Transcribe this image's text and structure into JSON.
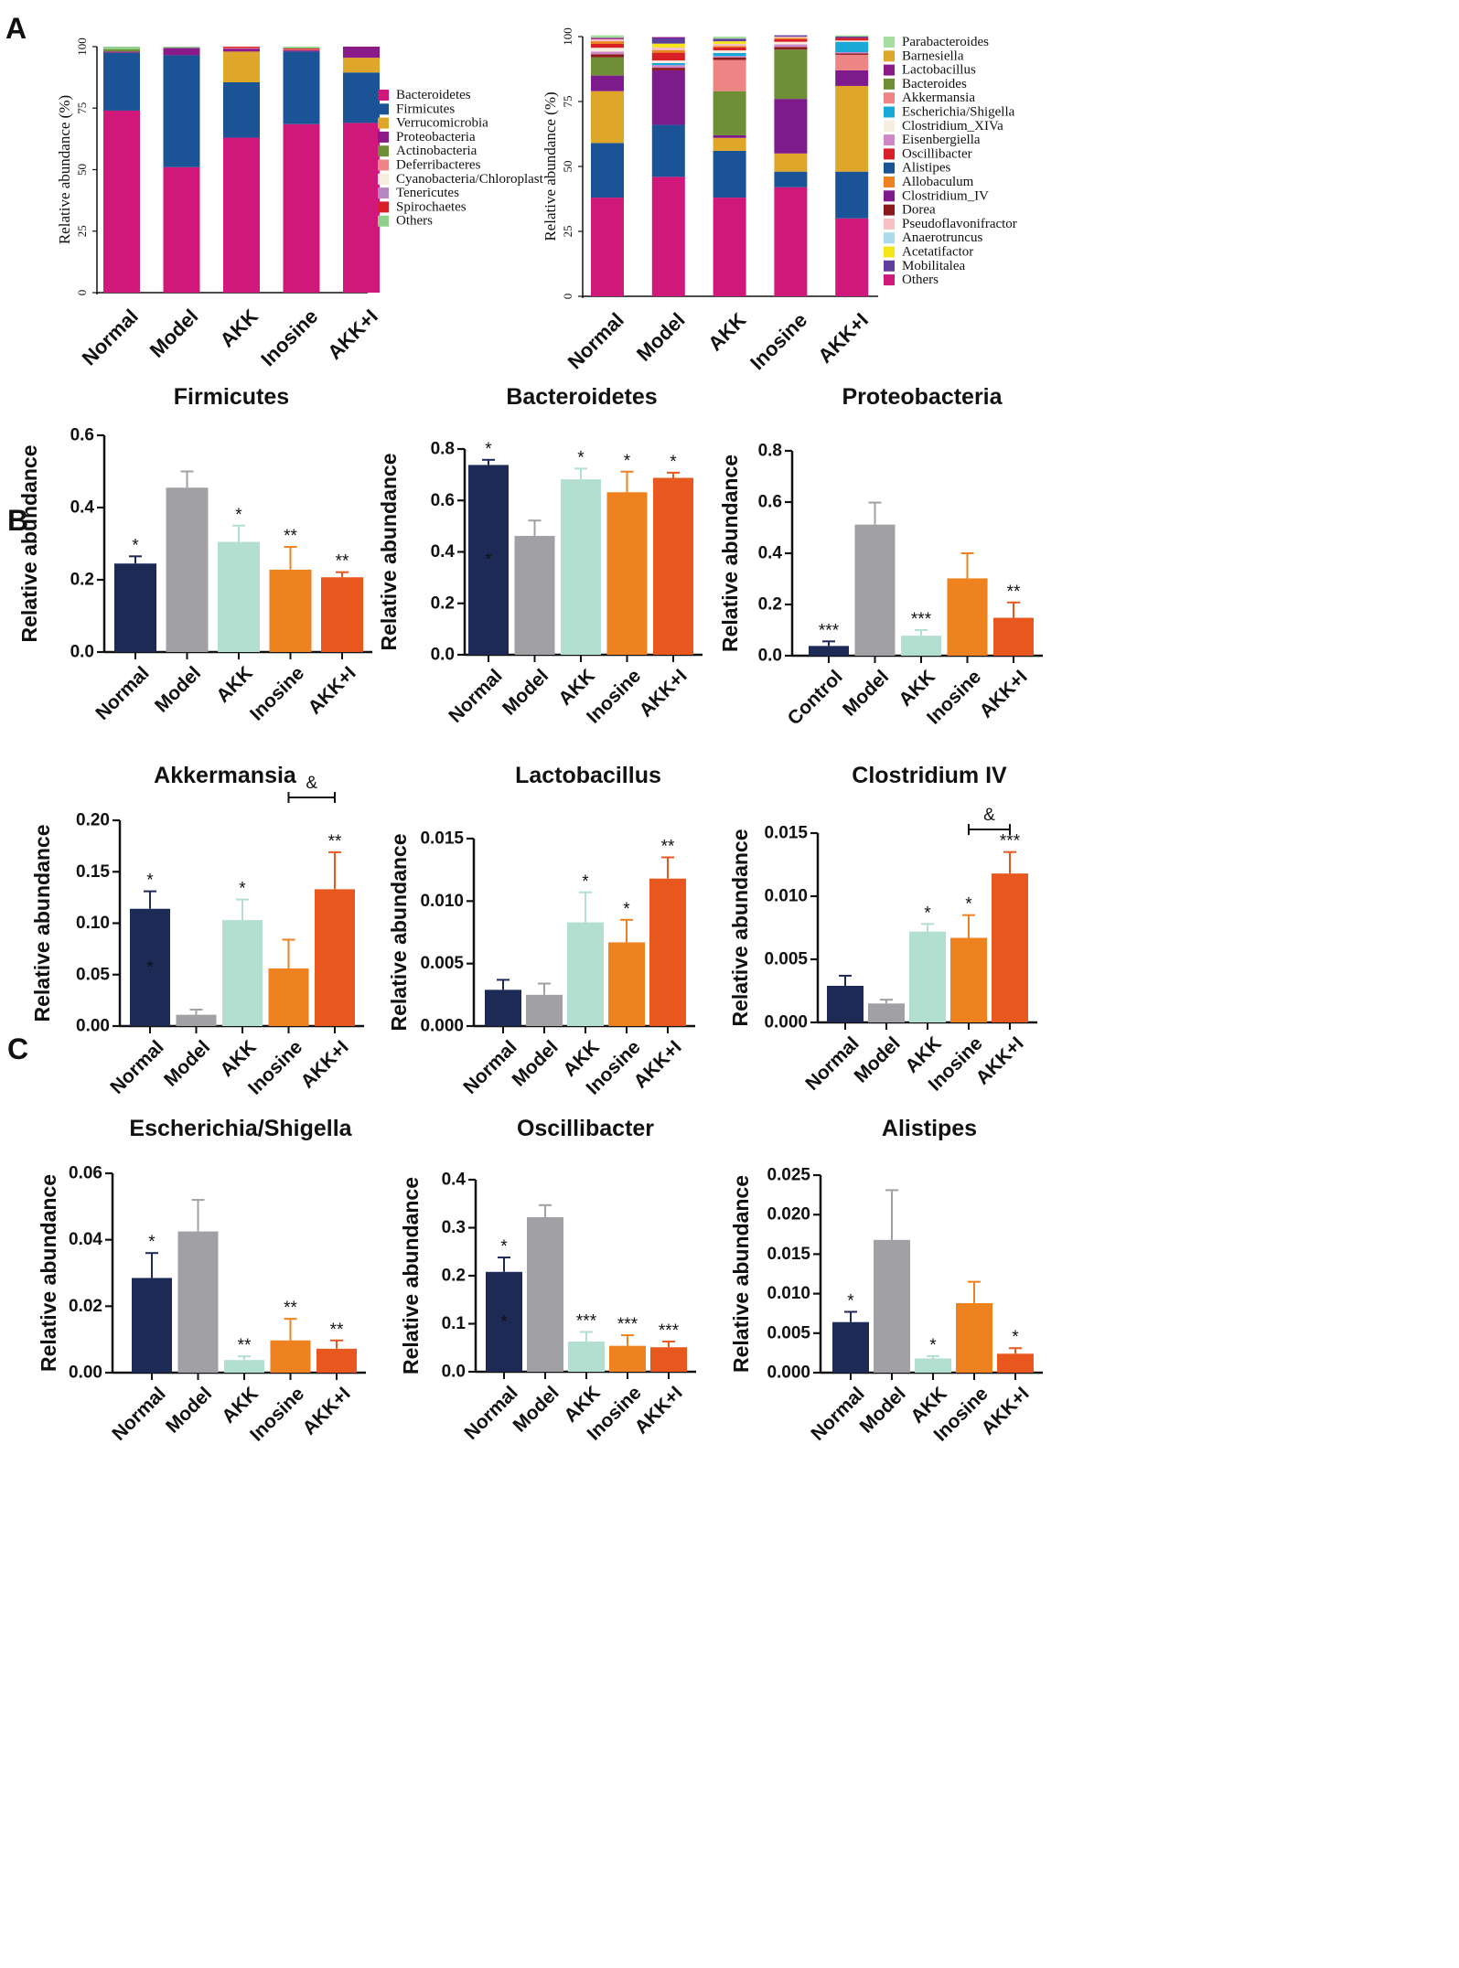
{
  "panel_labels": [
    "A",
    "B",
    "C"
  ],
  "colors": {
    "Normal": "#1c2a55",
    "Model": "#a1a1a5",
    "AKK": "#b2dfd0",
    "Inosine": "#ee821e",
    "AKK+I": "#e8581e"
  },
  "chart_data": [
    {
      "id": "A1",
      "type": "bar",
      "stacked": true,
      "ylabel": "Relative abundance (%)",
      "yticks": [
        "0",
        "25",
        "50",
        "75",
        "100"
      ],
      "ylim": [
        0,
        100
      ],
      "categories": [
        "Normal",
        "Model",
        "AKK",
        "Inosine",
        "AKK+I"
      ],
      "legend_position": "right",
      "series": [
        {
          "name": "Bacteroidetes",
          "color": "#d0177a",
          "values": [
            74,
            51,
            63,
            68.5,
            69
          ]
        },
        {
          "name": "Firmicutes",
          "color": "#1a5496",
          "values": [
            23.5,
            45.5,
            22.5,
            29.5,
            20.5
          ]
        },
        {
          "name": "Verrucomicrobia",
          "color": "#dea72a",
          "values": [
            0,
            0,
            12.5,
            0,
            6
          ]
        },
        {
          "name": "Proteobacteria",
          "color": "#8a1a8a",
          "values": [
            0.5,
            3,
            1.2,
            0.5,
            4.5
          ]
        },
        {
          "name": "Actinobacteria",
          "color": "#6f8f36",
          "values": [
            1,
            0,
            0,
            0,
            0
          ]
        },
        {
          "name": "Deferribacteres",
          "color": "#ee8585",
          "values": [
            0,
            0,
            0.3,
            0.3,
            0
          ]
        },
        {
          "name": "Cyanobacteria/Chloroplast",
          "color": "#f6ece0",
          "values": [
            0,
            0,
            0,
            0,
            0
          ]
        },
        {
          "name": "Tenericutes",
          "color": "#b487c0",
          "values": [
            0,
            0,
            0,
            0,
            0
          ]
        },
        {
          "name": "Spirochaetes",
          "color": "#d81f26",
          "values": [
            0,
            0,
            0.5,
            0.5,
            0
          ]
        },
        {
          "name": "Others",
          "color": "#8fd18a",
          "values": [
            1,
            0.5,
            0,
            0.7,
            0
          ]
        }
      ]
    },
    {
      "id": "A2",
      "type": "bar",
      "stacked": true,
      "ylabel": "Relative abundance (%)",
      "yticks": [
        "0",
        "25",
        "50",
        "75",
        "100"
      ],
      "ylim": [
        0,
        100
      ],
      "categories": [
        "Normal",
        "Model",
        "AKK",
        "Inosine",
        "AKK+I"
      ],
      "legend_position": "right",
      "legend": [
        "Parabacteroides",
        "Barnesiella",
        "Lactobacillus",
        "Bacteroides",
        "Akkermansia",
        "Escherichia/Shigella",
        "Clostridium_XIVa",
        "Eisenbergiella",
        "Oscillibacter",
        "Alistipes",
        "Allobaculum",
        "Clostridium_IV",
        "Dorea",
        "Pseudoflavonifractor",
        "Anaerotruncus",
        "Acetatifactor",
        "Mobilitalea",
        "Others"
      ],
      "series": [
        {
          "name": "Others",
          "color": "#d0177a",
          "values": [
            38,
            46,
            38,
            42,
            30
          ]
        },
        {
          "name": "Alistipes",
          "color": "#1a5496",
          "values": [
            21,
            20,
            18,
            6,
            18
          ]
        },
        {
          "name": "Barnesiella",
          "color": "#dea72a",
          "values": [
            20,
            0,
            5,
            7,
            33
          ]
        },
        {
          "name": "Clostridium_IV",
          "color": "#7d1a8c",
          "values": [
            6,
            21,
            1,
            21,
            6
          ]
        },
        {
          "name": "Bacteroides",
          "color": "#6f8f36",
          "values": [
            7,
            0,
            17,
            19,
            0
          ]
        },
        {
          "name": "Akkermansia",
          "color": "#ee8585",
          "values": [
            0,
            0,
            12,
            0,
            6
          ]
        },
        {
          "name": "Dorea",
          "color": "#8b1a1a",
          "values": [
            1.2,
            1,
            1,
            1,
            0.5
          ]
        },
        {
          "name": "Eisenbergiella",
          "color": "#cf87c8",
          "values": [
            1,
            1,
            0.5,
            1,
            0.5
          ]
        },
        {
          "name": "Escherichia/Shigella",
          "color": "#1aa8d8",
          "values": [
            0,
            0.8,
            1.2,
            0,
            4
          ]
        },
        {
          "name": "Clostridium_XIVa",
          "color": "#f6ece0",
          "values": [
            1.5,
            1,
            1,
            1,
            0.5
          ]
        },
        {
          "name": "Oscillibacter",
          "color": "#d81f26",
          "values": [
            1.5,
            3,
            1.2,
            1,
            1
          ]
        },
        {
          "name": "Allobaculum",
          "color": "#ee821e",
          "values": [
            1,
            1,
            0.5,
            0.5,
            0
          ]
        },
        {
          "name": "Pseudoflavonifractor",
          "color": "#f6c0c5",
          "values": [
            0.8,
            1,
            0.8,
            0.5,
            0
          ]
        },
        {
          "name": "Acetatifactor",
          "color": "#f5e61a",
          "values": [
            0,
            1.5,
            1,
            0,
            0
          ]
        },
        {
          "name": "Mobilitalea",
          "color": "#5e3f9c",
          "values": [
            0,
            2,
            1,
            0.5,
            0.5
          ]
        },
        {
          "name": "Anaerotruncus",
          "color": "#a9dbeb",
          "values": [
            0,
            0,
            0,
            0,
            0
          ]
        },
        {
          "name": "Lactobacillus",
          "color": "#8a1a8a",
          "values": [
            0.5,
            0.5,
            0,
            0,
            0
          ]
        },
        {
          "name": "Parabacteroides",
          "color": "#a6dda0",
          "values": [
            1,
            0,
            0.8,
            0,
            0.5
          ]
        }
      ]
    },
    {
      "id": "B1",
      "type": "bar",
      "title": "Firmicutes",
      "ylabel": "Relative abundance",
      "categories": [
        "Normal",
        "Model",
        "AKK",
        "Inosine",
        "AKK+I"
      ],
      "values": [
        0.245,
        0.455,
        0.305,
        0.228,
        0.207
      ],
      "errors": [
        0.02,
        0.045,
        0.045,
        0.063,
        0.014
      ],
      "annotations": [
        "*",
        "",
        "*",
        "**",
        "**"
      ],
      "ylim": [
        0,
        0.6
      ],
      "yticks": [
        "0.0",
        "0.2",
        "0.4",
        "0.6"
      ]
    },
    {
      "id": "B2",
      "type": "bar",
      "title": "Bacteroidetes",
      "ylabel": "Relative abundance",
      "categories": [
        "Normal",
        "Model",
        "AKK",
        "Inosine",
        "AKK+I"
      ],
      "values": [
        0.738,
        0.462,
        0.682,
        0.632,
        0.688
      ],
      "errors": [
        0.02,
        0.06,
        0.042,
        0.08,
        0.02
      ],
      "annotations": [
        "*",
        "",
        "*",
        "*",
        "*"
      ],
      "inner_marks": [
        "*",
        "",
        "",
        "",
        ""
      ],
      "ylim": [
        0,
        0.8
      ],
      "yticks": [
        "0.0",
        "0.2",
        "0.4",
        "0.6",
        "0.8"
      ]
    },
    {
      "id": "B3",
      "type": "bar",
      "title": "Proteobacteria",
      "ylabel": "Relative abundance",
      "categories": [
        "Control",
        "Model",
        "AKK",
        "Inosine",
        "AKK+I"
      ],
      "values": [
        0.038,
        0.512,
        0.078,
        0.302,
        0.148
      ],
      "errors": [
        0.018,
        0.086,
        0.022,
        0.098,
        0.06
      ],
      "annotations": [
        "***",
        "",
        "***",
        "",
        "**"
      ],
      "ylim": [
        0,
        0.8
      ],
      "yticks": [
        "0.0",
        "0.2",
        "0.4",
        "0.6",
        "0.8"
      ]
    },
    {
      "id": "C1",
      "type": "bar",
      "title": "Akkermansia",
      "ylabel": "Relative abundance",
      "categories": [
        "Normal",
        "Model",
        "AKK",
        "Inosine",
        "AKK+I"
      ],
      "values": [
        0.114,
        0.011,
        0.103,
        0.056,
        0.133
      ],
      "errors": [
        0.017,
        0.005,
        0.02,
        0.028,
        0.036
      ],
      "annotations": [
        "*",
        "",
        "*",
        "",
        "**"
      ],
      "inner_marks": [
        "*",
        "",
        "",
        "",
        ""
      ],
      "bracket": {
        "from": 3,
        "to": 4,
        "label": "&"
      },
      "ylim": [
        0,
        0.2
      ],
      "yticks": [
        "0.00",
        "0.05",
        "0.10",
        "0.15",
        "0.20"
      ]
    },
    {
      "id": "C2",
      "type": "bar",
      "title": "Lactobacillus",
      "ylabel": "Relative abundance",
      "categories": [
        "Normal",
        "Model",
        "AKK",
        "Inosine",
        "AKK+I"
      ],
      "values": [
        0.0029,
        0.0025,
        0.0083,
        0.0067,
        0.0118
      ],
      "errors": [
        0.0008,
        0.0009,
        0.0024,
        0.0018,
        0.0017
      ],
      "annotations": [
        "",
        "",
        "*",
        "*",
        "**"
      ],
      "ylim": [
        0,
        0.015
      ],
      "yticks": [
        "0.000",
        "0.005",
        "0.010",
        "0.015"
      ]
    },
    {
      "id": "C3",
      "type": "bar",
      "title": "Clostridium IV",
      "ylabel": "Relative abundance",
      "categories": [
        "Normal",
        "Model",
        "AKK",
        "Inosine",
        "AKK+I"
      ],
      "values": [
        0.0029,
        0.0015,
        0.0072,
        0.0067,
        0.0118
      ],
      "errors": [
        0.0008,
        0.0003,
        0.0006,
        0.0018,
        0.0017
      ],
      "annotations": [
        "",
        "",
        "*",
        "*",
        "***"
      ],
      "bracket": {
        "from": 3,
        "to": 4,
        "label": "&"
      },
      "ylim": [
        0,
        0.015
      ],
      "yticks": [
        "0.000",
        "0.005",
        "0.010",
        "0.015"
      ]
    },
    {
      "id": "C4",
      "type": "bar",
      "title": "Escherichia/Shigella",
      "ylabel": "Relative abundance",
      "categories": [
        "Normal",
        "Model",
        "AKK",
        "Inosine",
        "AKK+I"
      ],
      "values": [
        0.0285,
        0.0425,
        0.0038,
        0.0097,
        0.0072
      ],
      "errors": [
        0.0075,
        0.0095,
        0.0011,
        0.0065,
        0.0025
      ],
      "annotations": [
        "*",
        "",
        "**",
        "**",
        "**"
      ],
      "ylim": [
        0,
        0.06
      ],
      "yticks": [
        "0.00",
        "0.02",
        "0.04",
        "0.06"
      ]
    },
    {
      "id": "C5",
      "type": "bar",
      "title": "Oscillibacter",
      "ylabel": "Relative abundance",
      "categories": [
        "Normal",
        "Model",
        "AKK",
        "Inosine",
        "AKK+I"
      ],
      "values": [
        0.208,
        0.322,
        0.063,
        0.054,
        0.051
      ],
      "errors": [
        0.03,
        0.025,
        0.02,
        0.022,
        0.012
      ],
      "annotations": [
        "*",
        "",
        "***",
        "***",
        "***"
      ],
      "inner_marks": [
        "*",
        "",
        "",
        "",
        ""
      ],
      "ylim": [
        0,
        0.4
      ],
      "yticks": [
        "0.0",
        "0.1",
        "0.2",
        "0.3",
        "0.4"
      ]
    },
    {
      "id": "C6",
      "type": "bar",
      "title": "Alistipes",
      "ylabel": "Relative abundance",
      "categories": [
        "Normal",
        "Model",
        "AKK",
        "Inosine",
        "AKK+I"
      ],
      "values": [
        0.0064,
        0.0168,
        0.0018,
        0.0088,
        0.0024
      ],
      "errors": [
        0.0013,
        0.0063,
        0.0003,
        0.0027,
        0.0007
      ],
      "annotations": [
        "*",
        "",
        "*",
        "",
        "*"
      ],
      "ylim": [
        0,
        0.025
      ],
      "yticks": [
        "0.000",
        "0.005",
        "0.010",
        "0.015",
        "0.020",
        "0.025"
      ]
    }
  ]
}
